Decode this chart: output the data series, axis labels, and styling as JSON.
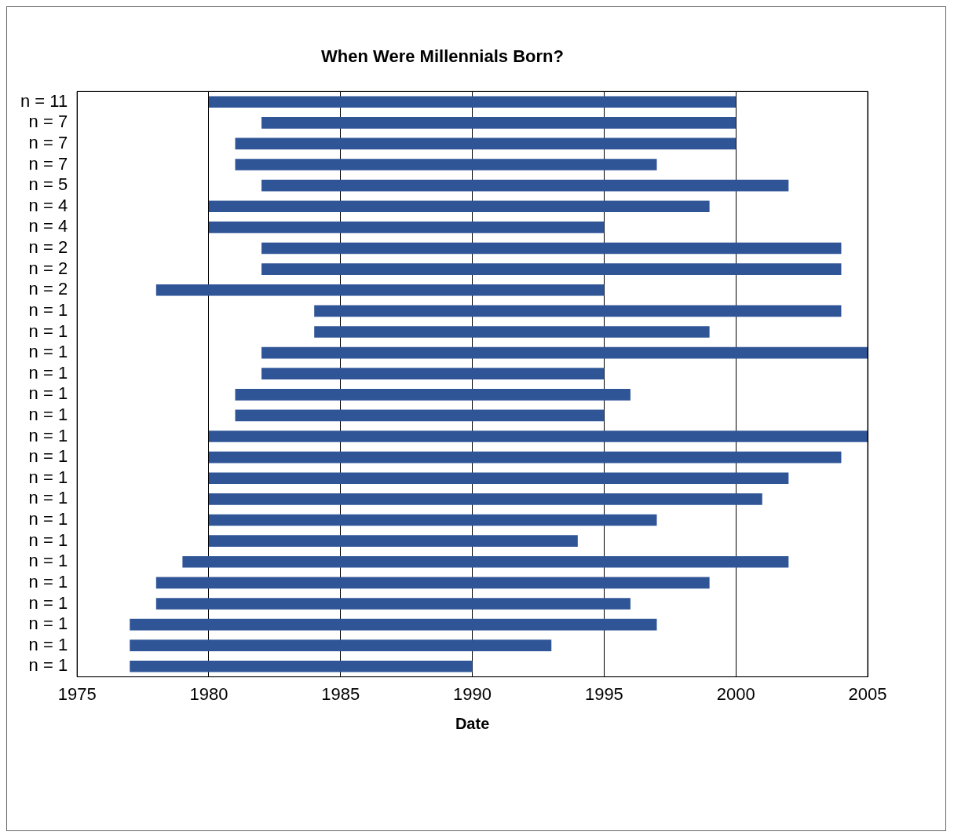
{
  "chart_data": {
    "type": "bar",
    "orientation": "horizontal",
    "title": "When Were Millennials Born?",
    "xlabel": "Date",
    "categories": [
      "n = 11",
      "n = 7",
      "n = 7",
      "n = 7",
      "n = 5",
      "n = 4",
      "n = 4",
      "n = 2",
      "n = 2",
      "n = 2",
      "n = 1",
      "n = 1",
      "n = 1",
      "n = 1",
      "n = 1",
      "n = 1",
      "n = 1",
      "n = 1",
      "n = 1",
      "n = 1",
      "n = 1",
      "n = 1",
      "n = 1",
      "n = 1",
      "n = 1",
      "n = 1",
      "n = 1",
      "n = 1"
    ],
    "base": [
      1980,
      1982,
      1981,
      1981,
      1982,
      1980,
      1980,
      1982,
      1982,
      1978,
      1984,
      1984,
      1982,
      1982,
      1981,
      1981,
      1980,
      1980,
      1980,
      1980,
      1980,
      1980,
      1979,
      1978,
      1978,
      1977,
      1977,
      1977
    ],
    "values": [
      20,
      18,
      19,
      16,
      20,
      19,
      15,
      22,
      22,
      17,
      20,
      15,
      23,
      13,
      15,
      14,
      25,
      24,
      22,
      21,
      17,
      14,
      23,
      21,
      18,
      20,
      16,
      13
    ],
    "color": "#2f5597",
    "xlim": [
      1975,
      2005
    ],
    "xticks": [
      1975,
      1980,
      1985,
      1990,
      1995,
      2000,
      2005
    ],
    "grid": "x",
    "legend": false
  }
}
